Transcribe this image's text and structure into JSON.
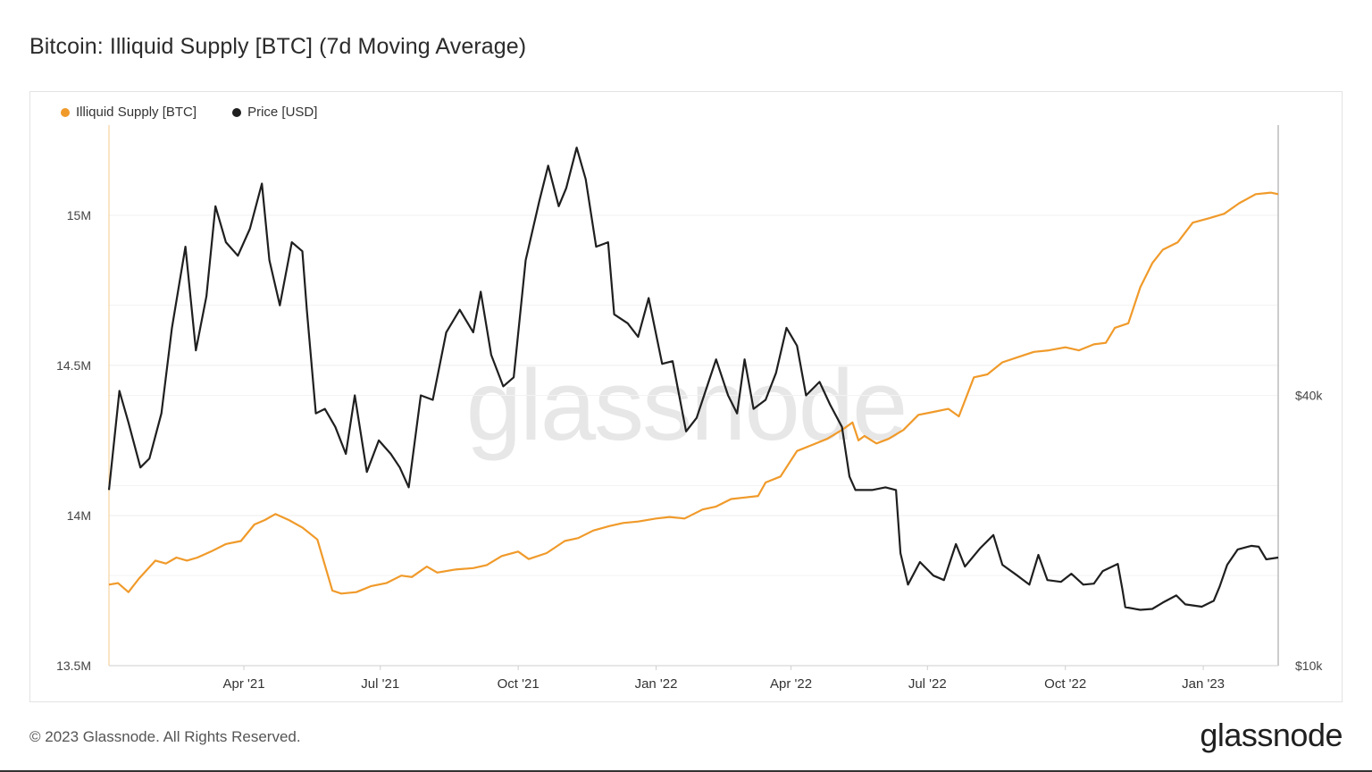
{
  "title": "Bitcoin: Illiquid Supply [BTC] (7d Moving Average)",
  "watermark": "glassnode",
  "footer": {
    "copyright": "© 2023 Glassnode. All Rights Reserved.",
    "brand": "glassnode"
  },
  "colors": {
    "illiquid": "#f09a2a",
    "price": "#1f1f1f",
    "grid": "#eeeeee",
    "axis_text": "#444444"
  },
  "chart_data": {
    "type": "line",
    "title": "Bitcoin: Illiquid Supply [BTC] (7d Moving Average)",
    "x_ticks": [
      "Apr '21",
      "Jul '21",
      "Oct '21",
      "Jan '22",
      "Apr '22",
      "Jul '22",
      "Oct '22",
      "Jan '23"
    ],
    "x_range": [
      "2021-01-01",
      "2023-02-20"
    ],
    "legend": [
      "Illiquid Supply [BTC]",
      "Price [USD]"
    ],
    "legend_position": "top-left",
    "y_left": {
      "label": "",
      "ticks": [
        "13.5M",
        "14M",
        "14.5M",
        "15M"
      ],
      "range": [
        13500000,
        15300000
      ]
    },
    "y_right": {
      "label": "",
      "ticks": [
        "$10k",
        "$40k"
      ],
      "range": [
        10000,
        70000
      ],
      "scale": "linear"
    },
    "grid": true,
    "series": [
      {
        "name": "Illiquid Supply [BTC]",
        "axis": "left",
        "points": [
          [
            "2021-01-01",
            13770000
          ],
          [
            "2021-01-07",
            13775000
          ],
          [
            "2021-01-14",
            13745000
          ],
          [
            "2021-01-21",
            13790000
          ],
          [
            "2021-02-01",
            13850000
          ],
          [
            "2021-02-08",
            13840000
          ],
          [
            "2021-02-15",
            13860000
          ],
          [
            "2021-02-22",
            13850000
          ],
          [
            "2021-03-01",
            13860000
          ],
          [
            "2021-03-10",
            13880000
          ],
          [
            "2021-03-20",
            13905000
          ],
          [
            "2021-03-30",
            13915000
          ],
          [
            "2021-04-08",
            13970000
          ],
          [
            "2021-04-15",
            13985000
          ],
          [
            "2021-04-22",
            14005000
          ],
          [
            "2021-05-01",
            13985000
          ],
          [
            "2021-05-10",
            13960000
          ],
          [
            "2021-05-20",
            13920000
          ],
          [
            "2021-05-30",
            13750000
          ],
          [
            "2021-06-05",
            13740000
          ],
          [
            "2021-06-15",
            13745000
          ],
          [
            "2021-06-25",
            13765000
          ],
          [
            "2021-07-05",
            13775000
          ],
          [
            "2021-07-15",
            13800000
          ],
          [
            "2021-07-22",
            13795000
          ],
          [
            "2021-08-01",
            13830000
          ],
          [
            "2021-08-08",
            13810000
          ],
          [
            "2021-08-20",
            13820000
          ],
          [
            "2021-09-01",
            13825000
          ],
          [
            "2021-09-10",
            13835000
          ],
          [
            "2021-09-20",
            13865000
          ],
          [
            "2021-10-01",
            13880000
          ],
          [
            "2021-10-08",
            13855000
          ],
          [
            "2021-10-20",
            13875000
          ],
          [
            "2021-11-01",
            13915000
          ],
          [
            "2021-11-10",
            13925000
          ],
          [
            "2021-11-20",
            13950000
          ],
          [
            "2021-12-01",
            13965000
          ],
          [
            "2021-12-10",
            13975000
          ],
          [
            "2021-12-20",
            13980000
          ],
          [
            "2022-01-01",
            13990000
          ],
          [
            "2022-01-10",
            13995000
          ],
          [
            "2022-01-20",
            13990000
          ],
          [
            "2022-02-01",
            14020000
          ],
          [
            "2022-02-10",
            14030000
          ],
          [
            "2022-02-20",
            14055000
          ],
          [
            "2022-03-01",
            14060000
          ],
          [
            "2022-03-10",
            14065000
          ],
          [
            "2022-03-15",
            14110000
          ],
          [
            "2022-03-25",
            14130000
          ],
          [
            "2022-04-05",
            14215000
          ],
          [
            "2022-04-15",
            14235000
          ],
          [
            "2022-04-25",
            14255000
          ],
          [
            "2022-05-05",
            14285000
          ],
          [
            "2022-05-12",
            14310000
          ],
          [
            "2022-05-16",
            14250000
          ],
          [
            "2022-05-20",
            14265000
          ],
          [
            "2022-05-28",
            14240000
          ],
          [
            "2022-06-05",
            14255000
          ],
          [
            "2022-06-15",
            14285000
          ],
          [
            "2022-06-25",
            14335000
          ],
          [
            "2022-07-05",
            14345000
          ],
          [
            "2022-07-15",
            14355000
          ],
          [
            "2022-07-22",
            14330000
          ],
          [
            "2022-08-01",
            14460000
          ],
          [
            "2022-08-10",
            14470000
          ],
          [
            "2022-08-20",
            14510000
          ],
          [
            "2022-09-01",
            14530000
          ],
          [
            "2022-09-10",
            14545000
          ],
          [
            "2022-09-20",
            14550000
          ],
          [
            "2022-10-01",
            14560000
          ],
          [
            "2022-10-10",
            14550000
          ],
          [
            "2022-10-20",
            14570000
          ],
          [
            "2022-10-28",
            14575000
          ],
          [
            "2022-11-03",
            14625000
          ],
          [
            "2022-11-12",
            14640000
          ],
          [
            "2022-11-20",
            14760000
          ],
          [
            "2022-11-28",
            14840000
          ],
          [
            "2022-12-05",
            14885000
          ],
          [
            "2022-12-15",
            14910000
          ],
          [
            "2022-12-25",
            14975000
          ],
          [
            "2023-01-05",
            14990000
          ],
          [
            "2023-01-15",
            15005000
          ],
          [
            "2023-01-25",
            15040000
          ],
          [
            "2023-02-05",
            15070000
          ],
          [
            "2023-02-15",
            15075000
          ],
          [
            "2023-02-20",
            15070000
          ]
        ]
      },
      {
        "name": "Price [USD]",
        "axis": "right",
        "points": [
          [
            "2021-01-01",
            29500
          ],
          [
            "2021-01-08",
            40500
          ],
          [
            "2021-01-14",
            37000
          ],
          [
            "2021-01-22",
            32000
          ],
          [
            "2021-01-28",
            33000
          ],
          [
            "2021-02-05",
            38000
          ],
          [
            "2021-02-12",
            47500
          ],
          [
            "2021-02-21",
            56500
          ],
          [
            "2021-02-28",
            45000
          ],
          [
            "2021-03-07",
            51000
          ],
          [
            "2021-03-13",
            61000
          ],
          [
            "2021-03-20",
            57000
          ],
          [
            "2021-03-28",
            55500
          ],
          [
            "2021-04-05",
            58500
          ],
          [
            "2021-04-13",
            63500
          ],
          [
            "2021-04-18",
            55000
          ],
          [
            "2021-04-25",
            50000
          ],
          [
            "2021-05-03",
            57000
          ],
          [
            "2021-05-10",
            56000
          ],
          [
            "2021-05-13",
            49500
          ],
          [
            "2021-05-19",
            38000
          ],
          [
            "2021-05-25",
            38500
          ],
          [
            "2021-06-01",
            36500
          ],
          [
            "2021-06-08",
            33500
          ],
          [
            "2021-06-14",
            40000
          ],
          [
            "2021-06-22",
            31500
          ],
          [
            "2021-06-30",
            35000
          ],
          [
            "2021-07-08",
            33500
          ],
          [
            "2021-07-14",
            32000
          ],
          [
            "2021-07-20",
            29800
          ],
          [
            "2021-07-28",
            40000
          ],
          [
            "2021-08-05",
            39500
          ],
          [
            "2021-08-14",
            47000
          ],
          [
            "2021-08-23",
            49500
          ],
          [
            "2021-09-01",
            47000
          ],
          [
            "2021-09-06",
            51500
          ],
          [
            "2021-09-13",
            44500
          ],
          [
            "2021-09-21",
            41000
          ],
          [
            "2021-09-28",
            42000
          ],
          [
            "2021-10-06",
            55000
          ],
          [
            "2021-10-15",
            61500
          ],
          [
            "2021-10-21",
            65500
          ],
          [
            "2021-10-28",
            61000
          ],
          [
            "2021-11-02",
            63000
          ],
          [
            "2021-11-09",
            67500
          ],
          [
            "2021-11-15",
            64000
          ],
          [
            "2021-11-22",
            56500
          ],
          [
            "2021-11-30",
            57000
          ],
          [
            "2021-12-04",
            49000
          ],
          [
            "2021-12-13",
            48000
          ],
          [
            "2021-12-20",
            46500
          ],
          [
            "2021-12-27",
            50800
          ],
          [
            "2022-01-05",
            43500
          ],
          [
            "2022-01-12",
            43800
          ],
          [
            "2022-01-21",
            36000
          ],
          [
            "2022-01-28",
            37500
          ],
          [
            "2022-02-05",
            41500
          ],
          [
            "2022-02-10",
            44000
          ],
          [
            "2022-02-18",
            40000
          ],
          [
            "2022-02-24",
            38000
          ],
          [
            "2022-03-01",
            44000
          ],
          [
            "2022-03-07",
            38500
          ],
          [
            "2022-03-15",
            39500
          ],
          [
            "2022-03-22",
            42500
          ],
          [
            "2022-03-29",
            47500
          ],
          [
            "2022-04-05",
            45500
          ],
          [
            "2022-04-11",
            40000
          ],
          [
            "2022-04-20",
            41500
          ],
          [
            "2022-04-27",
            39000
          ],
          [
            "2022-05-05",
            36500
          ],
          [
            "2022-05-10",
            31000
          ],
          [
            "2022-05-14",
            29500
          ],
          [
            "2022-05-25",
            29500
          ],
          [
            "2022-06-03",
            29800
          ],
          [
            "2022-06-10",
            29500
          ],
          [
            "2022-06-13",
            22500
          ],
          [
            "2022-06-18",
            19000
          ],
          [
            "2022-06-26",
            21500
          ],
          [
            "2022-07-05",
            20000
          ],
          [
            "2022-07-12",
            19500
          ],
          [
            "2022-07-20",
            23500
          ],
          [
            "2022-07-26",
            21000
          ],
          [
            "2022-08-05",
            23000
          ],
          [
            "2022-08-14",
            24500
          ],
          [
            "2022-08-20",
            21200
          ],
          [
            "2022-08-30",
            20000
          ],
          [
            "2022-09-07",
            19000
          ],
          [
            "2022-09-13",
            22300
          ],
          [
            "2022-09-19",
            19500
          ],
          [
            "2022-09-28",
            19300
          ],
          [
            "2022-10-05",
            20200
          ],
          [
            "2022-10-13",
            19000
          ],
          [
            "2022-10-20",
            19100
          ],
          [
            "2022-10-26",
            20500
          ],
          [
            "2022-11-05",
            21300
          ],
          [
            "2022-11-08",
            18500
          ],
          [
            "2022-11-10",
            16500
          ],
          [
            "2022-11-20",
            16200
          ],
          [
            "2022-11-28",
            16300
          ],
          [
            "2022-12-05",
            17000
          ],
          [
            "2022-12-14",
            17800
          ],
          [
            "2022-12-20",
            16800
          ],
          [
            "2022-12-31",
            16550
          ],
          [
            "2023-01-08",
            17200
          ],
          [
            "2023-01-12",
            18800
          ],
          [
            "2023-01-17",
            21200
          ],
          [
            "2023-01-24",
            22900
          ],
          [
            "2023-02-02",
            23300
          ],
          [
            "2023-02-07",
            23200
          ],
          [
            "2023-02-12",
            21800
          ],
          [
            "2023-02-20",
            22000
          ]
        ]
      }
    ]
  }
}
